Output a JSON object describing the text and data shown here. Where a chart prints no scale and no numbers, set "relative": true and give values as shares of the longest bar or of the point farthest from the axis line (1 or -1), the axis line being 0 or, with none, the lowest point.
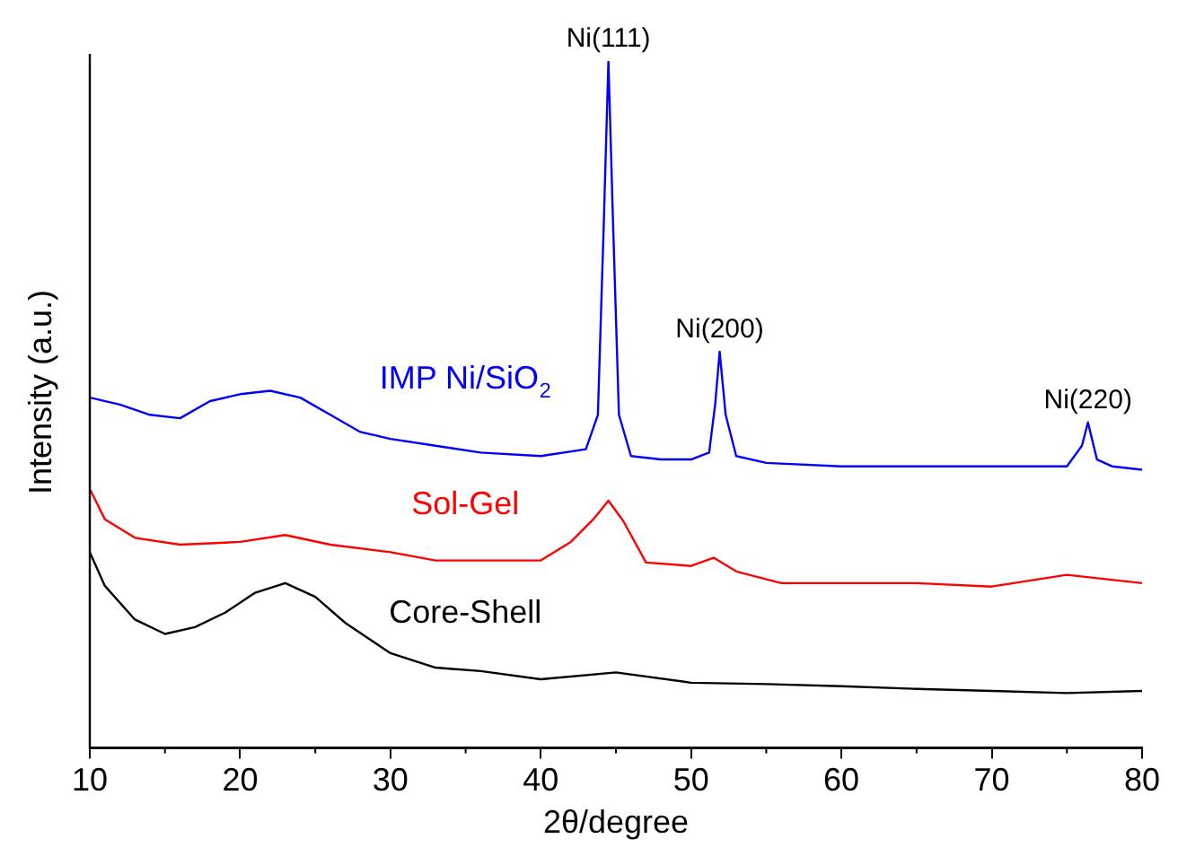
{
  "chart_data": {
    "type": "line",
    "xlabel": "2θ/degree",
    "ylabel": "Intensity (a.u.)",
    "relative": true,
    "xlim": [
      10,
      80
    ],
    "xticks": [
      10,
      20,
      30,
      40,
      50,
      60,
      70,
      80
    ],
    "grid": false,
    "legend": false,
    "marker": "none",
    "line_style": "solid",
    "series": [
      {
        "name": "IMP Ni/SiO$_{2}$",
        "color": "#0000ff",
        "x": [
          10,
          12,
          14,
          16,
          18,
          20,
          22,
          24,
          26,
          28,
          30,
          33,
          36,
          40,
          43,
          43.8,
          44.2,
          44.5,
          44.8,
          45.2,
          46,
          48,
          50,
          51.2,
          51.6,
          51.9,
          52.3,
          53,
          55,
          60,
          65,
          70,
          75,
          76,
          76.4,
          77,
          78,
          80
        ],
        "values": [
          0.51,
          0.5,
          0.485,
          0.48,
          0.505,
          0.515,
          0.52,
          0.51,
          0.485,
          0.46,
          0.45,
          0.44,
          0.43,
          0.425,
          0.435,
          0.485,
          0.77,
          1.0,
          0.77,
          0.485,
          0.425,
          0.42,
          0.42,
          0.43,
          0.5,
          0.577,
          0.485,
          0.425,
          0.415,
          0.41,
          0.41,
          0.41,
          0.41,
          0.44,
          0.474,
          0.42,
          0.41,
          0.405
        ]
      },
      {
        "name": "Sol-Gel",
        "color": "#ff0000",
        "x": [
          10,
          11,
          13,
          16,
          20,
          23,
          26,
          30,
          33,
          36,
          40,
          42,
          43.5,
          44.5,
          45.5,
          47,
          50,
          51.5,
          53,
          56,
          60,
          65,
          70,
          75,
          80
        ],
        "values": [
          0.377,
          0.333,
          0.306,
          0.296,
          0.3,
          0.31,
          0.296,
          0.285,
          0.273,
          0.273,
          0.273,
          0.3,
          0.333,
          0.36,
          0.33,
          0.27,
          0.265,
          0.277,
          0.257,
          0.24,
          0.24,
          0.24,
          0.235,
          0.252,
          0.24
        ]
      },
      {
        "name": "Core-Shell",
        "color": "#000000",
        "x": [
          10,
          11,
          13,
          15,
          17,
          19,
          21,
          23,
          25,
          27,
          30,
          33,
          36,
          40,
          45,
          50,
          55,
          60,
          65,
          70,
          75,
          80
        ],
        "values": [
          0.285,
          0.236,
          0.187,
          0.166,
          0.176,
          0.197,
          0.226,
          0.24,
          0.22,
          0.182,
          0.138,
          0.117,
          0.112,
          0.1,
          0.11,
          0.095,
          0.093,
          0.09,
          0.086,
          0.083,
          0.08,
          0.083
        ]
      }
    ],
    "annotations": [
      {
        "text": "Ni(111)",
        "x": 44.5,
        "y": 1.0
      },
      {
        "text": "Ni(200)",
        "x": 51.9,
        "y": 0.577
      },
      {
        "text": "Ni(220)",
        "x": 76.4,
        "y": 0.474
      }
    ]
  }
}
